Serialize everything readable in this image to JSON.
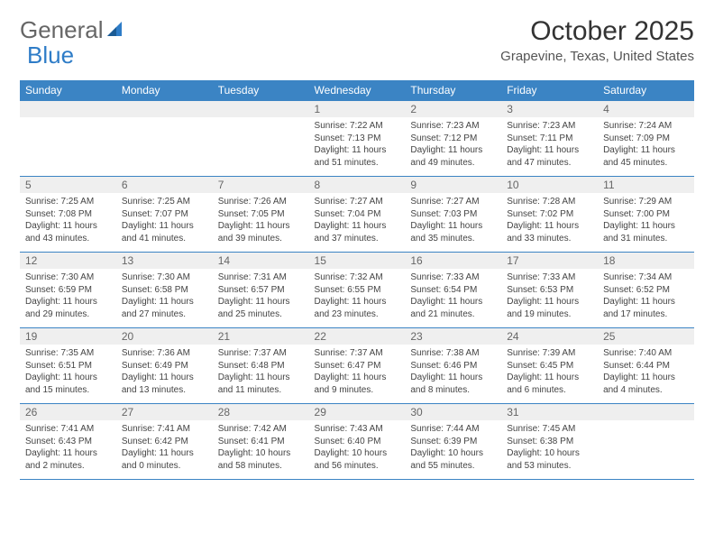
{
  "logo": {
    "text1": "General",
    "text2": "Blue"
  },
  "title": "October 2025",
  "location": "Grapevine, Texas, United States",
  "colors": {
    "header_bg": "#3b84c4",
    "header_text": "#ffffff",
    "daynum_bg": "#efefef",
    "border": "#3b84c4",
    "logo_blue": "#2e7cc7"
  },
  "day_names": [
    "Sunday",
    "Monday",
    "Tuesday",
    "Wednesday",
    "Thursday",
    "Friday",
    "Saturday"
  ],
  "weeks": [
    [
      null,
      null,
      null,
      {
        "n": "1",
        "sunrise": "7:22 AM",
        "sunset": "7:13 PM",
        "dl": "11 hours and 51 minutes."
      },
      {
        "n": "2",
        "sunrise": "7:23 AM",
        "sunset": "7:12 PM",
        "dl": "11 hours and 49 minutes."
      },
      {
        "n": "3",
        "sunrise": "7:23 AM",
        "sunset": "7:11 PM",
        "dl": "11 hours and 47 minutes."
      },
      {
        "n": "4",
        "sunrise": "7:24 AM",
        "sunset": "7:09 PM",
        "dl": "11 hours and 45 minutes."
      }
    ],
    [
      {
        "n": "5",
        "sunrise": "7:25 AM",
        "sunset": "7:08 PM",
        "dl": "11 hours and 43 minutes."
      },
      {
        "n": "6",
        "sunrise": "7:25 AM",
        "sunset": "7:07 PM",
        "dl": "11 hours and 41 minutes."
      },
      {
        "n": "7",
        "sunrise": "7:26 AM",
        "sunset": "7:05 PM",
        "dl": "11 hours and 39 minutes."
      },
      {
        "n": "8",
        "sunrise": "7:27 AM",
        "sunset": "7:04 PM",
        "dl": "11 hours and 37 minutes."
      },
      {
        "n": "9",
        "sunrise": "7:27 AM",
        "sunset": "7:03 PM",
        "dl": "11 hours and 35 minutes."
      },
      {
        "n": "10",
        "sunrise": "7:28 AM",
        "sunset": "7:02 PM",
        "dl": "11 hours and 33 minutes."
      },
      {
        "n": "11",
        "sunrise": "7:29 AM",
        "sunset": "7:00 PM",
        "dl": "11 hours and 31 minutes."
      }
    ],
    [
      {
        "n": "12",
        "sunrise": "7:30 AM",
        "sunset": "6:59 PM",
        "dl": "11 hours and 29 minutes."
      },
      {
        "n": "13",
        "sunrise": "7:30 AM",
        "sunset": "6:58 PM",
        "dl": "11 hours and 27 minutes."
      },
      {
        "n": "14",
        "sunrise": "7:31 AM",
        "sunset": "6:57 PM",
        "dl": "11 hours and 25 minutes."
      },
      {
        "n": "15",
        "sunrise": "7:32 AM",
        "sunset": "6:55 PM",
        "dl": "11 hours and 23 minutes."
      },
      {
        "n": "16",
        "sunrise": "7:33 AM",
        "sunset": "6:54 PM",
        "dl": "11 hours and 21 minutes."
      },
      {
        "n": "17",
        "sunrise": "7:33 AM",
        "sunset": "6:53 PM",
        "dl": "11 hours and 19 minutes."
      },
      {
        "n": "18",
        "sunrise": "7:34 AM",
        "sunset": "6:52 PM",
        "dl": "11 hours and 17 minutes."
      }
    ],
    [
      {
        "n": "19",
        "sunrise": "7:35 AM",
        "sunset": "6:51 PM",
        "dl": "11 hours and 15 minutes."
      },
      {
        "n": "20",
        "sunrise": "7:36 AM",
        "sunset": "6:49 PM",
        "dl": "11 hours and 13 minutes."
      },
      {
        "n": "21",
        "sunrise": "7:37 AM",
        "sunset": "6:48 PM",
        "dl": "11 hours and 11 minutes."
      },
      {
        "n": "22",
        "sunrise": "7:37 AM",
        "sunset": "6:47 PM",
        "dl": "11 hours and 9 minutes."
      },
      {
        "n": "23",
        "sunrise": "7:38 AM",
        "sunset": "6:46 PM",
        "dl": "11 hours and 8 minutes."
      },
      {
        "n": "24",
        "sunrise": "7:39 AM",
        "sunset": "6:45 PM",
        "dl": "11 hours and 6 minutes."
      },
      {
        "n": "25",
        "sunrise": "7:40 AM",
        "sunset": "6:44 PM",
        "dl": "11 hours and 4 minutes."
      }
    ],
    [
      {
        "n": "26",
        "sunrise": "7:41 AM",
        "sunset": "6:43 PM",
        "dl": "11 hours and 2 minutes."
      },
      {
        "n": "27",
        "sunrise": "7:41 AM",
        "sunset": "6:42 PM",
        "dl": "11 hours and 0 minutes."
      },
      {
        "n": "28",
        "sunrise": "7:42 AM",
        "sunset": "6:41 PM",
        "dl": "10 hours and 58 minutes."
      },
      {
        "n": "29",
        "sunrise": "7:43 AM",
        "sunset": "6:40 PM",
        "dl": "10 hours and 56 minutes."
      },
      {
        "n": "30",
        "sunrise": "7:44 AM",
        "sunset": "6:39 PM",
        "dl": "10 hours and 55 minutes."
      },
      {
        "n": "31",
        "sunrise": "7:45 AM",
        "sunset": "6:38 PM",
        "dl": "10 hours and 53 minutes."
      },
      null
    ]
  ]
}
